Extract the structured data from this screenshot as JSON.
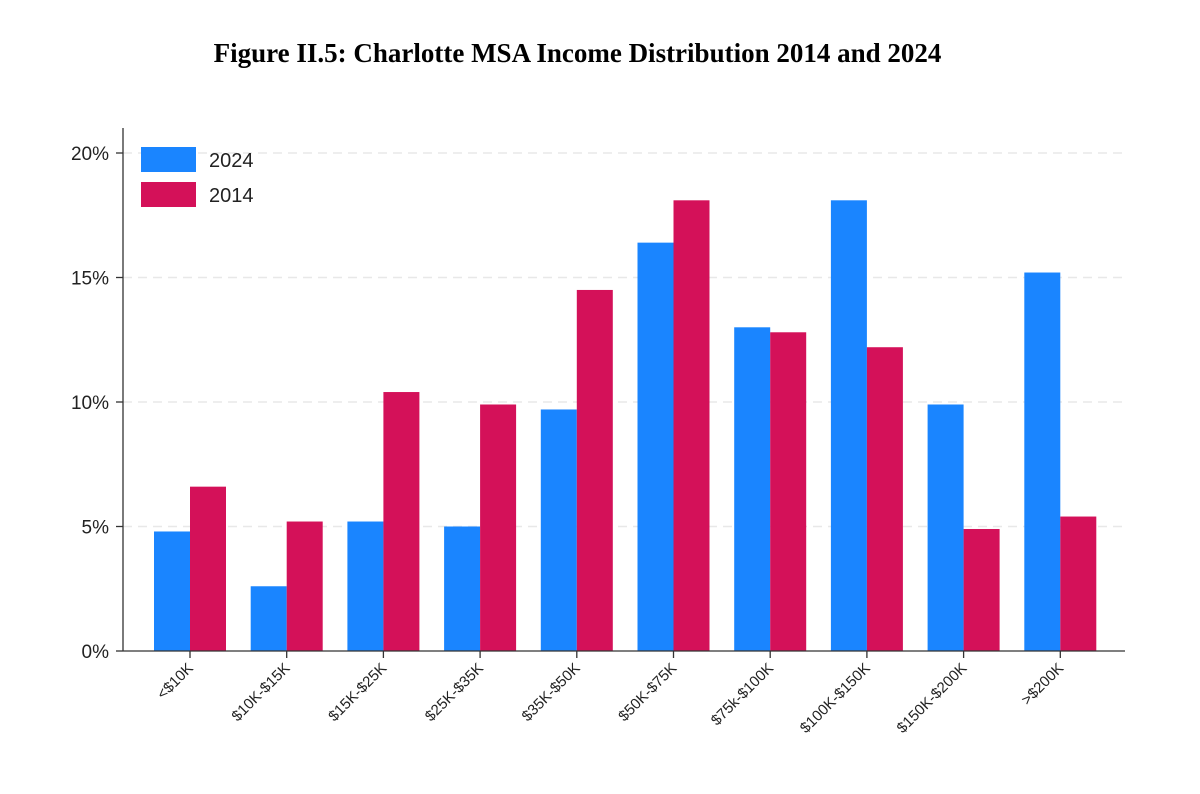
{
  "figure": {
    "title": "Figure II.5: Charlotte MSA Income Distribution 2014 and 2024"
  },
  "chart_data": {
    "type": "bar",
    "title": "Figure II.5: Charlotte MSA Income Distribution 2014 and 2024",
    "xlabel": "",
    "ylabel": "",
    "categories": [
      "<$10K",
      "$10K-$15K",
      "$15K-$25K",
      "$25K-$35K",
      "$35K-$50K",
      "$50K-$75K",
      "$75k-$100K",
      "$100K-$150K",
      "$150K-$200K",
      ">$200K"
    ],
    "series": [
      {
        "name": "2024",
        "color": "#1a85ff",
        "values": [
          4.8,
          2.6,
          5.2,
          5.0,
          9.7,
          16.4,
          13.0,
          18.1,
          9.9,
          15.2
        ]
      },
      {
        "name": "2014",
        "color": "#d41159",
        "values": [
          6.6,
          5.2,
          10.4,
          9.9,
          14.5,
          18.1,
          12.8,
          12.2,
          4.9,
          5.4
        ]
      }
    ],
    "ylim": [
      0,
      20
    ],
    "yticks": [
      0,
      5,
      10,
      15,
      20
    ],
    "ytick_labels": [
      "0%",
      "5%",
      "10%",
      "15%",
      "20%"
    ],
    "grid": "horizontal dashed",
    "legend_position": "top-left"
  }
}
